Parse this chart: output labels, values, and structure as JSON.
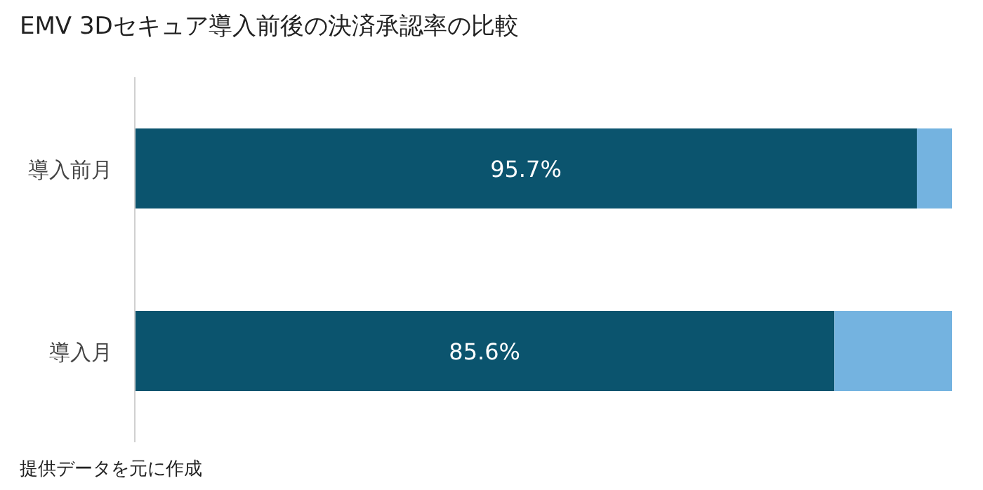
{
  "chart_data": {
    "type": "bar",
    "orientation": "horizontal",
    "stacked": true,
    "title": "EMV 3Dセキュア導入前後の決済承認率の比較",
    "categories": [
      "導入前月",
      "導入月"
    ],
    "series": [
      {
        "color": "#0b546e",
        "values": [
          95.7,
          85.6
        ],
        "value_labels": [
          "95.7%",
          "85.6%"
        ]
      },
      {
        "color": "#74b3e0",
        "values": [
          4.3,
          14.4
        ]
      }
    ],
    "xlim": [
      0,
      100
    ],
    "tick_labels": "y",
    "annotations": [
      "提供データを元に作成"
    ]
  }
}
